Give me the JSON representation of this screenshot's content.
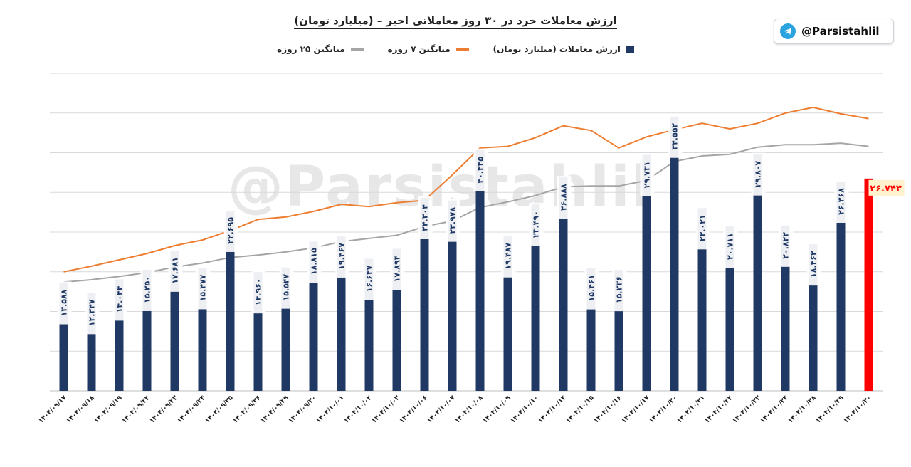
{
  "header": {
    "handle": "@Parsistahlil"
  },
  "watermark": "@Parsistahlil",
  "chart_data": {
    "type": "bar",
    "title": "ارزش معاملات خرد در ۳۰ روز معاملاتی اخیر – (میلیارد تومان)",
    "legend": {
      "position": "top",
      "items": [
        "ارزش معاملات (میلیارد تومان)",
        "میانگین ۷ روزه",
        "میانگین ۲۵ روزه"
      ]
    },
    "categories": [
      "۱۴۰۴/۰۹/۱۷",
      "۱۴۰۴/۰۹/۱۸",
      "۱۴۰۴/۰۹/۱۹",
      "۱۴۰۴/۰۹/۲۲",
      "۱۴۰۴/۰۹/۲۳",
      "۱۴۰۴/۰۹/۲۴",
      "۱۴۰۴/۰۹/۲۵",
      "۱۴۰۴/۰۹/۲۶",
      "۱۴۰۴/۰۹/۲۹",
      "۱۴۰۴/۰۹/۳۰",
      "۱۴۰۴/۱۰/۰۱",
      "۱۴۰۴/۱۰/۰۲",
      "۱۴۰۴/۱۰/۰۳",
      "۱۴۰۴/۱۰/۰۶",
      "۱۴۰۴/۱۰/۰۷",
      "۱۴۰۴/۱۰/۰۸",
      "۱۴۰۴/۱۰/۰۹",
      "۱۴۰۴/۱۰/۱۰",
      "۱۴۰۴/۱۰/۱۴",
      "۱۴۰۴/۱۰/۱۵",
      "۱۴۰۴/۱۰/۱۶",
      "۱۴۰۴/۱۰/۱۷",
      "۱۴۰۴/۱۰/۲۰",
      "۱۴۰۴/۱۰/۲۱",
      "۱۴۰۴/۱۰/۲۲",
      "۱۴۰۴/۱۰/۲۳",
      "۱۴۰۴/۱۰/۲۴",
      "۱۴۰۴/۱۰/۲۸",
      "۱۴۰۴/۱۰/۲۹",
      "۱۴۰۴/۱۰/۳۰"
    ],
    "series": [
      {
        "name": "ارزش معاملات (میلیارد تومان)",
        "type": "bar",
        "color": "#1f3864",
        "values": [
          13.588,
          12.347,
          14.044,
          15.25,
          17.681,
          15.477,
          22.695,
          14.96,
          15.547,
          18.815,
          19.467,
          16.637,
          17.894,
          24.304,
          23.978,
          30.335,
          19.487,
          23.49,
          26.888,
          15.461,
          15.236,
          29.731,
          34.552,
          23.021,
          20.711,
          29.807,
          20.822,
          18.462,
          26.368,
          26.743
        ],
        "labels": [
          "۱۳.۵۸۸",
          "۱۲.۳۴۷",
          "۱۴.۰۴۴",
          "۱۵.۲۵۰",
          "۱۷.۶۸۱",
          "۱۵.۴۷۷",
          "۲۲.۶۹۵",
          "۱۴.۹۶۰",
          "۱۵.۵۴۷",
          "۱۸.۸۱۵",
          "۱۹.۴۶۷",
          "۱۶.۶۳۷",
          "۱۷.۸۹۴",
          "۲۴.۳۰۴",
          "۲۳.۹۷۸",
          "۳۰.۳۳۵",
          "۱۹.۴۸۷",
          "۲۳.۴۹۰",
          "۲۶.۸۸۸",
          "۱۵.۴۶۱",
          "۱۵.۲۳۶",
          "۲۹.۷۳۱",
          "۳۴.۵۵۲",
          "۲۳.۰۲۱",
          "۲۰.۷۱۱",
          "۲۹.۸۰۷",
          "۲۰.۸۲۲",
          "۱۸.۴۶۲",
          "۲۶.۳۶۸",
          "۲۶.۷۴۳"
        ],
        "highlight": {
          "index": 29,
          "color": "#ff0000",
          "label_bg": "#fff2cc",
          "label_color": "#ff0000"
        }
      },
      {
        "name": "میانگین ۷ روزه",
        "type": "line",
        "color": "#ed7d31",
        "values": [
          15.0,
          15.7,
          16.5,
          17.3,
          18.3,
          19.0,
          20.2,
          21.6,
          21.9,
          22.6,
          23.5,
          23.2,
          23.7,
          24.0,
          27.2,
          30.6,
          30.8,
          31.9,
          33.4,
          32.8,
          30.6,
          32.0,
          32.9,
          33.7,
          33.0,
          33.7,
          35.0,
          35.7,
          34.9,
          34.3
        ]
      },
      {
        "name": "میانگین ۲۵ روزه",
        "type": "line",
        "color": "#a5a5a5",
        "values": [
          13.7,
          14.0,
          14.4,
          14.9,
          15.6,
          16.1,
          16.8,
          17.1,
          17.5,
          18.0,
          18.8,
          19.2,
          19.6,
          20.7,
          21.4,
          23.1,
          23.8,
          24.6,
          25.7,
          25.8,
          25.8,
          26.5,
          28.9,
          29.6,
          29.8,
          30.7,
          31.0,
          31.0,
          31.2,
          30.8
        ]
      }
    ],
    "ylim": [
      0,
      40
    ],
    "grid": true
  }
}
